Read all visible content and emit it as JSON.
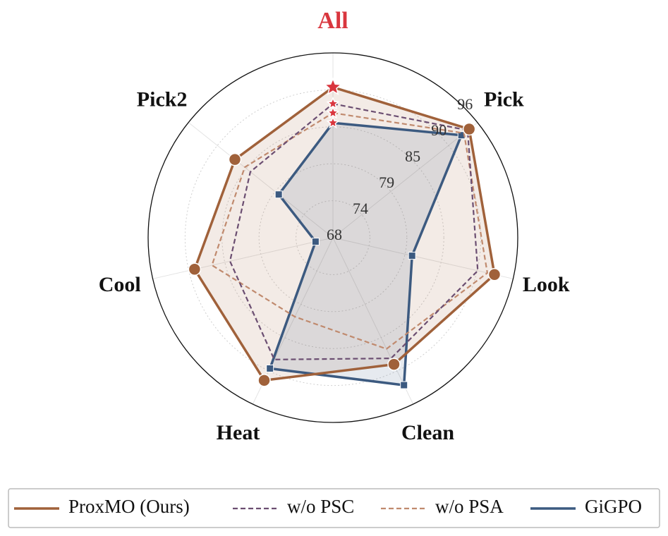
{
  "chart_data": {
    "type": "radar",
    "categories": [
      "All",
      "Pick",
      "Look",
      "Clean",
      "Heat",
      "Cool",
      "Pick2"
    ],
    "highlight_color": "#d9363e",
    "ylim": [
      68,
      96
    ],
    "yticks": [
      68,
      {
        "value": 73.6,
        "label": "74"
      },
      {
        "value": 79.2,
        "label": "79"
      },
      {
        "value": 84.8,
        "label": "85"
      },
      {
        "value": 90.4,
        "label": "90"
      },
      96
    ],
    "grid": true,
    "legend": "bottom",
    "series": [
      {
        "name": "ProxMO (Ours)",
        "color": "#a0613a",
        "linestyle": "solid",
        "marker": "circle",
        "fill": true,
        "values": [
          90.8,
          94.4,
          93.1,
          89.3,
          92.0,
          89.5,
          87.0
        ]
      },
      {
        "name": "w/o PSC",
        "color": "#6b4e71",
        "linestyle": "dashed",
        "marker": "none",
        "fill": false,
        "values": [
          88.3,
          94.1,
          90.5,
          88.3,
          88.5,
          84.0,
          84.0
        ]
      },
      {
        "name": "w/o PSA",
        "color": "#c08a6e",
        "linestyle": "dashed",
        "marker": "none",
        "fill": false,
        "values": [
          86.9,
          93.4,
          92.0,
          86.7,
          81.3,
          86.8,
          85.1
        ]
      },
      {
        "name": "GiGPO",
        "color": "#3c5a80",
        "linestyle": "solid",
        "marker": "square",
        "fill": true,
        "values": [
          85.4,
          92.9,
          80.3,
          92.8,
          90.0,
          70.7,
          78.5
        ]
      }
    ]
  }
}
